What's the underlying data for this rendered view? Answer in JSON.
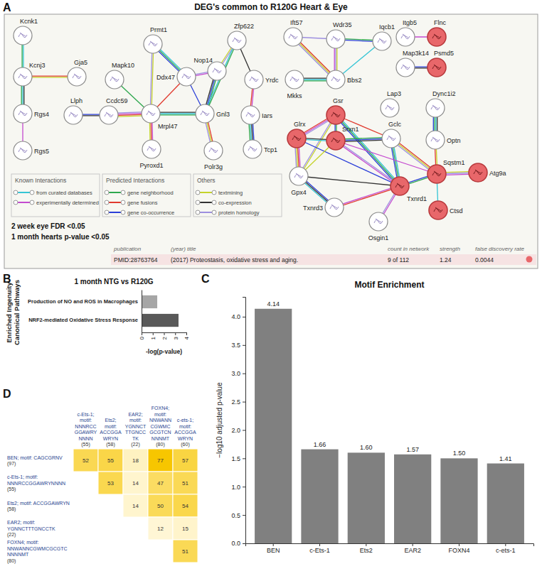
{
  "network": {
    "panel": "A",
    "title": "DEG's common to R120G Heart & Eye",
    "nodes": [
      {
        "label": "Kcnk1",
        "color": "#ffffff"
      },
      {
        "label": "Kcnj3",
        "color": "#ffffff"
      },
      {
        "label": "Gja5",
        "color": "#ffffff"
      },
      {
        "label": "Rgs4",
        "color": "#ffffff"
      },
      {
        "label": "Rgs5",
        "color": "#ffffff"
      },
      {
        "label": "Llph",
        "color": "#ffffff"
      },
      {
        "label": "Ccdc59",
        "color": "#ffffff"
      },
      {
        "label": "Mapk10",
        "color": "#ffffff"
      },
      {
        "label": "Prmt1",
        "color": "#ffffff"
      },
      {
        "label": "Ddx47",
        "color": "#ffffff"
      },
      {
        "label": "Mrpl47",
        "color": "#ffffff"
      },
      {
        "label": "Gnl3",
        "color": "#ffffff"
      },
      {
        "label": "Nop14",
        "color": "#ffffff"
      },
      {
        "label": "Zfp622",
        "color": "#ffffff"
      },
      {
        "label": "Yrdc",
        "color": "#ffffff"
      },
      {
        "label": "Iars",
        "color": "#ffffff"
      },
      {
        "label": "Tcp1",
        "color": "#ffffff"
      },
      {
        "label": "Pyroxd1",
        "color": "#ffffff"
      },
      {
        "label": "Polr3g",
        "color": "#ffffff"
      },
      {
        "label": "Ift57",
        "color": "#ffffff"
      },
      {
        "label": "Wdr35",
        "color": "#ffffff"
      },
      {
        "label": "Iqcb1",
        "color": "#ffffff"
      },
      {
        "label": "Mkks",
        "color": "#ffffff"
      },
      {
        "label": "Bbs2",
        "color": "#ffffff"
      },
      {
        "label": "Itgb5",
        "color": "#ffffff"
      },
      {
        "label": "Flnc",
        "color": "#e8676a"
      },
      {
        "label": "Map3k14",
        "color": "#ffffff"
      },
      {
        "label": "Psmd5",
        "color": "#e8676a"
      },
      {
        "label": "Gsr",
        "color": "#e8676a"
      },
      {
        "label": "Lap3",
        "color": "#ffffff"
      },
      {
        "label": "Dync1i2",
        "color": "#ffffff"
      },
      {
        "label": "Glrx",
        "color": "#e8676a"
      },
      {
        "label": "Srxn1",
        "color": "#e8676a"
      },
      {
        "label": "Gclc",
        "color": "#ffffff"
      },
      {
        "label": "Optn",
        "color": "#ffffff"
      },
      {
        "label": "Gpx4",
        "color": "#ffffff"
      },
      {
        "label": "Sqstm1",
        "color": "#e8676a"
      },
      {
        "label": "Atg9a",
        "color": "#e8676a"
      },
      {
        "label": "Txnrd1",
        "color": "#e8676a"
      },
      {
        "label": "Ctsd",
        "color": "#e8676a"
      },
      {
        "label": "Txnrd3",
        "color": "#ffffff"
      },
      {
        "label": "Osgin1",
        "color": "#ffffff"
      }
    ],
    "edges": [
      [
        "Kcnk1",
        "Kcnj3"
      ],
      [
        "Kcnj3",
        "Gja5"
      ],
      [
        "Kcnj3",
        "Rgs4"
      ],
      [
        "Rgs4",
        "Rgs5"
      ],
      [
        "Llph",
        "Ccdc59"
      ],
      [
        "Ccdc59",
        "Mrpl47"
      ],
      [
        "Mapk10",
        "Mrpl47"
      ],
      [
        "Prmt1",
        "Mrpl47"
      ],
      [
        "Prmt1",
        "Ddx47"
      ],
      [
        "Ddx47",
        "Mrpl47"
      ],
      [
        "Mrpl47",
        "Gnl3"
      ],
      [
        "Mrpl47",
        "Pyroxd1"
      ],
      [
        "Ddx47",
        "Gnl3"
      ],
      [
        "Ddx47",
        "Nop14"
      ],
      [
        "Nop14",
        "Gnl3"
      ],
      [
        "Nop14",
        "Zfp622"
      ],
      [
        "Gnl3",
        "Zfp622"
      ],
      [
        "Gnl3",
        "Polr3g"
      ],
      [
        "Zfp622",
        "Yrdc"
      ],
      [
        "Yrdc",
        "Iars"
      ],
      [
        "Iars",
        "Tcp1"
      ],
      [
        "Ift57",
        "Wdr35"
      ],
      [
        "Wdr35",
        "Iqcb1"
      ],
      [
        "Wdr35",
        "Bbs2"
      ],
      [
        "Iqcb1",
        "Bbs2"
      ],
      [
        "Ift57",
        "Bbs2"
      ],
      [
        "Mkks",
        "Bbs2"
      ],
      [
        "Itgb5",
        "Flnc"
      ],
      [
        "Map3k14",
        "Psmd5"
      ],
      [
        "Gsr",
        "Glrx"
      ],
      [
        "Gsr",
        "Srxn1"
      ],
      [
        "Gsr",
        "Gpx4"
      ],
      [
        "Gsr",
        "Txnrd1"
      ],
      [
        "Gsr",
        "Gclc"
      ],
      [
        "Glrx",
        "Srxn1"
      ],
      [
        "Glrx",
        "Gpx4"
      ],
      [
        "Glrx",
        "Txnrd1"
      ],
      [
        "Srxn1",
        "Txnrd1"
      ],
      [
        "Srxn1",
        "Gclc"
      ],
      [
        "Srxn1",
        "Gpx4"
      ],
      [
        "Gclc",
        "Txnrd1"
      ],
      [
        "Gclc",
        "Sqstm1"
      ],
      [
        "Gpx4",
        "Txnrd1"
      ],
      [
        "Txnrd3",
        "Txnrd1"
      ],
      [
        "Gpx4",
        "Txnrd3"
      ],
      [
        "Osgin1",
        "Txnrd1"
      ],
      [
        "Sqstm1",
        "Txnrd1"
      ],
      [
        "Sqstm1",
        "Atg9a"
      ],
      [
        "Sqstm1",
        "Ctsd"
      ],
      [
        "Sqstm1",
        "Optn"
      ],
      [
        "Dync1i2",
        "Optn"
      ],
      [
        "Srxn1",
        "Sqstm1"
      ]
    ],
    "legend": [
      {
        "title": "Known Interactions",
        "items": [
          {
            "label": "from curated databases",
            "color": "#35c5d5"
          },
          {
            "label": "experimentally determined",
            "color": "#c44ad0"
          }
        ]
      },
      {
        "title": "Predicted Interactions",
        "items": [
          {
            "label": "gene neighborhood",
            "color": "#2fa84f"
          },
          {
            "label": "gene fusions",
            "color": "#e03a2f"
          },
          {
            "label": "gene co-occurrence",
            "color": "#2b3fd8"
          }
        ]
      },
      {
        "title": "Others",
        "items": [
          {
            "label": "textmining",
            "color": "#c5d32a"
          },
          {
            "label": "co-expression",
            "color": "#333333"
          },
          {
            "label": "protein homology",
            "color": "#9d8fe0"
          }
        ]
      }
    ],
    "notes": [
      "2 week eye FDR <0.05",
      "1 month hearts p-value <0.05"
    ],
    "enrichment_table": {
      "header": [
        "publication",
        "(year) title",
        "count in network",
        "strength",
        "false discovery rate"
      ],
      "row": [
        "PMID:28763764",
        "(2017) Proteostasis, oxidative stress and aging.",
        "9 of 112",
        "1.24",
        "0.0044"
      ],
      "color": "#e8676a"
    }
  },
  "chart_data": [
    {
      "type": "bar",
      "panel": "B",
      "orientation": "horizontal",
      "title": "1 month NTG vs R120G",
      "y_label": "Enriched Ingenuity Canonical Pathways",
      "x_label": "-log(p-value)",
      "categories": [
        "Production of NO and ROS in Macrophages",
        "NRF2-mediated Oxidative Stress Response"
      ],
      "values": [
        1.4,
        3.3
      ],
      "colors": [
        "#a6a6a6",
        "#595959"
      ],
      "xlim": [
        0,
        4
      ],
      "xticks": [
        0,
        1,
        2,
        3,
        4
      ]
    },
    {
      "type": "bar",
      "panel": "C",
      "title": "Motif Enrichment",
      "y_label": "−log10 adjusted p-value",
      "categories": [
        "BEN",
        "c-Ets-1",
        "Ets2",
        "EAR2",
        "FOXN4",
        "c-ets-1"
      ],
      "values": [
        4.14,
        1.66,
        1.6,
        1.57,
        1.5,
        1.41
      ],
      "value_labels": [
        "4.14",
        "1.66",
        "1.60",
        "1.57",
        "1.50",
        "1.41"
      ],
      "data_labels": true,
      "color": "#808080",
      "ylim": [
        0,
        4.35
      ],
      "yticks": [
        {
          "value": 0,
          "label": "0.0"
        },
        {
          "value": 0.5,
          "label": "0.5"
        },
        {
          "value": 1,
          "label": "1.0"
        },
        {
          "value": 1.5,
          "label": "1.5"
        },
        {
          "value": 2,
          "label": "2.0"
        },
        {
          "value": 2.5,
          "label": "2.5"
        },
        {
          "value": 3,
          "label": "3.0"
        },
        {
          "value": 3.5,
          "label": "3.5"
        },
        {
          "value": 4,
          "label": "4.0"
        }
      ]
    },
    {
      "type": "heatmap",
      "panel": "D",
      "columns": [
        {
          "label": "c-Ets-1; motif: NNNRCCGGAWRYNNNN",
          "count": "(55)"
        },
        {
          "label": "Ets2; motif: ACCGGAWRYN",
          "count": "(58)"
        },
        {
          "label": "EAR2; motif: YGNNCTTTGNCCTK",
          "count": "(22)"
        },
        {
          "label": "FOXN4; motif: NNWANNCGWMCGCGTCNNNNMT",
          "count": "(80)"
        },
        {
          "label": "c-ets-1; motif: ACCGGAWRYN",
          "count": "(60)"
        }
      ],
      "rows": [
        {
          "label": "BEN; motif: CAGCGRNV",
          "count": "(97)"
        },
        {
          "label": "c-Ets-1; motif: NNNRCCGGAWRYNNNN",
          "count": "(55)"
        },
        {
          "label": "Ets2; motif: ACCGGAWRYN",
          "count": "(58)"
        },
        {
          "label": "EAR2; motif: YGNNCTTTGNCCTK",
          "count": "(22)"
        },
        {
          "label": "FOXN4; motif: NNWANNCGWMCGCGTCNNNNMT",
          "count": "(80)"
        }
      ],
      "cells": [
        [
          52,
          55,
          18,
          77,
          57
        ],
        [
          null,
          53,
          14,
          47,
          51
        ],
        [
          null,
          null,
          14,
          50,
          54
        ],
        [
          null,
          null,
          null,
          12,
          15
        ],
        [
          null,
          null,
          null,
          null,
          51
        ]
      ]
    }
  ]
}
